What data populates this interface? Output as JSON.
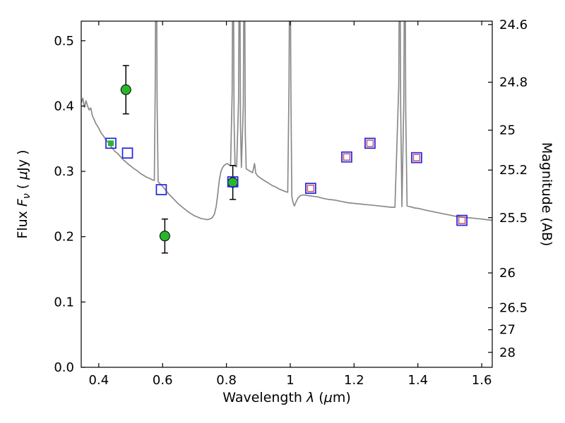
{
  "chart_data": {
    "type": "line+scatter",
    "description": "Spectral energy distribution: gray model spectrum with photometric points",
    "xlabel_parts": [
      {
        "t": "Wavelength  ",
        "style": "normal"
      },
      {
        "t": "λ",
        "style": "italic"
      },
      {
        "t": " (",
        "style": "normal"
      },
      {
        "t": "μ",
        "style": "italic"
      },
      {
        "t": "m)",
        "style": "normal"
      }
    ],
    "ylabel_left_parts": [
      {
        "t": "Flux  ",
        "style": "normal"
      },
      {
        "t": "F",
        "style": "italic"
      },
      {
        "t": "ν",
        "style": "italic",
        "sub": true
      },
      {
        "t": "  ( ",
        "style": "normal"
      },
      {
        "t": "μ",
        "style": "italic"
      },
      {
        "t": "Jy )",
        "style": "normal"
      }
    ],
    "ylabel_right": "Magnitude (AB)",
    "xlim": [
      0.345,
      1.633
    ],
    "ylim_flux": [
      0.0,
      0.53
    ],
    "x_ticks": [
      0.4,
      0.6,
      0.8,
      1,
      1.2,
      1.4,
      1.6
    ],
    "x_tick_labels": [
      "0.4",
      "0.6",
      "0.8",
      "1",
      "1.2",
      "1.4",
      "1.6"
    ],
    "y_ticks_flux": [
      0.0,
      0.1,
      0.2,
      0.3,
      0.4,
      0.5
    ],
    "y_tick_labels_flux": [
      "0.0",
      "0.1",
      "0.2",
      "0.3",
      "0.4",
      "0.5"
    ],
    "mag_ticks": [
      24.6,
      24.8,
      25,
      25.2,
      25.5,
      26,
      26.5,
      27,
      28
    ],
    "mag_tick_labels": [
      "24.6",
      "24.8",
      "25",
      "25.2",
      "25.5",
      "26",
      "26.5",
      "27",
      "28"
    ],
    "ab_zeropoint_ujy": 23.9,
    "colors": {
      "spectrum": "#8a8a8a",
      "green_marker": "#2bb52b",
      "blue_square_edge": "#2424dd",
      "red_square_edge": "#c85c74",
      "errorbar": "#000000",
      "axis": "#000000"
    },
    "spectrum_points": [
      [
        0.345,
        0.405
      ],
      [
        0.35,
        0.412
      ],
      [
        0.355,
        0.398
      ],
      [
        0.36,
        0.408
      ],
      [
        0.365,
        0.4
      ],
      [
        0.37,
        0.394
      ],
      [
        0.375,
        0.397
      ],
      [
        0.38,
        0.385
      ],
      [
        0.385,
        0.38
      ],
      [
        0.39,
        0.374
      ],
      [
        0.395,
        0.37
      ],
      [
        0.4,
        0.366
      ],
      [
        0.405,
        0.361
      ],
      [
        0.41,
        0.357
      ],
      [
        0.415,
        0.354
      ],
      [
        0.42,
        0.35
      ],
      [
        0.425,
        0.347
      ],
      [
        0.43,
        0.344
      ],
      [
        0.435,
        0.34
      ],
      [
        0.44,
        0.337
      ],
      [
        0.445,
        0.334
      ],
      [
        0.45,
        0.331
      ],
      [
        0.455,
        0.329
      ],
      [
        0.46,
        0.327
      ],
      [
        0.467,
        0.323
      ],
      [
        0.474,
        0.319
      ],
      [
        0.481,
        0.316
      ],
      [
        0.488,
        0.313
      ],
      [
        0.495,
        0.31
      ],
      [
        0.503,
        0.307
      ],
      [
        0.511,
        0.304
      ],
      [
        0.52,
        0.301
      ],
      [
        0.53,
        0.297
      ],
      [
        0.54,
        0.294
      ],
      [
        0.55,
        0.291
      ],
      [
        0.56,
        0.289
      ],
      [
        0.568,
        0.287
      ],
      [
        0.574,
        0.286
      ],
      [
        0.577,
        0.43
      ],
      [
        0.579,
        0.62
      ],
      [
        0.581,
        0.62
      ],
      [
        0.583,
        0.4
      ],
      [
        0.586,
        0.284
      ],
      [
        0.592,
        0.281
      ],
      [
        0.6,
        0.277
      ],
      [
        0.61,
        0.271
      ],
      [
        0.62,
        0.265
      ],
      [
        0.63,
        0.26
      ],
      [
        0.64,
        0.255
      ],
      [
        0.65,
        0.25
      ],
      [
        0.66,
        0.246
      ],
      [
        0.67,
        0.242
      ],
      [
        0.68,
        0.238
      ],
      [
        0.69,
        0.235
      ],
      [
        0.7,
        0.232
      ],
      [
        0.71,
        0.23
      ],
      [
        0.72,
        0.228
      ],
      [
        0.73,
        0.227
      ],
      [
        0.74,
        0.226
      ],
      [
        0.748,
        0.227
      ],
      [
        0.755,
        0.229
      ],
      [
        0.762,
        0.234
      ],
      [
        0.768,
        0.246
      ],
      [
        0.773,
        0.266
      ],
      [
        0.778,
        0.288
      ],
      [
        0.783,
        0.3
      ],
      [
        0.788,
        0.306
      ],
      [
        0.793,
        0.309
      ],
      [
        0.798,
        0.311
      ],
      [
        0.803,
        0.312
      ],
      [
        0.808,
        0.31
      ],
      [
        0.813,
        0.309
      ],
      [
        0.818,
        0.42
      ],
      [
        0.82,
        0.62
      ],
      [
        0.822,
        0.62
      ],
      [
        0.824,
        0.38
      ],
      [
        0.827,
        0.308
      ],
      [
        0.832,
        0.307
      ],
      [
        0.838,
        0.41
      ],
      [
        0.84,
        0.62
      ],
      [
        0.842,
        0.62
      ],
      [
        0.844,
        0.37
      ],
      [
        0.847,
        0.306
      ],
      [
        0.853,
        0.4
      ],
      [
        0.855,
        0.62
      ],
      [
        0.857,
        0.62
      ],
      [
        0.859,
        0.36
      ],
      [
        0.862,
        0.304
      ],
      [
        0.868,
        0.302
      ],
      [
        0.875,
        0.3
      ],
      [
        0.882,
        0.298
      ],
      [
        0.888,
        0.312
      ],
      [
        0.892,
        0.297
      ],
      [
        0.898,
        0.293
      ],
      [
        0.906,
        0.29
      ],
      [
        0.915,
        0.287
      ],
      [
        0.925,
        0.284
      ],
      [
        0.935,
        0.281
      ],
      [
        0.945,
        0.278
      ],
      [
        0.955,
        0.276
      ],
      [
        0.965,
        0.273
      ],
      [
        0.975,
        0.271
      ],
      [
        0.985,
        0.269
      ],
      [
        0.992,
        0.268
      ],
      [
        0.996,
        0.43
      ],
      [
        0.998,
        0.62
      ],
      [
        1.0,
        0.62
      ],
      [
        1.002,
        0.42
      ],
      [
        1.005,
        0.262
      ],
      [
        1.009,
        0.252
      ],
      [
        1.013,
        0.247
      ],
      [
        1.018,
        0.253
      ],
      [
        1.024,
        0.259
      ],
      [
        1.032,
        0.263
      ],
      [
        1.042,
        0.264
      ],
      [
        1.055,
        0.263
      ],
      [
        1.07,
        0.262
      ],
      [
        1.085,
        0.261
      ],
      [
        1.1,
        0.259
      ],
      [
        1.12,
        0.257
      ],
      [
        1.14,
        0.256
      ],
      [
        1.16,
        0.254
      ],
      [
        1.18,
        0.252
      ],
      [
        1.2,
        0.251
      ],
      [
        1.22,
        0.25
      ],
      [
        1.24,
        0.249
      ],
      [
        1.26,
        0.248
      ],
      [
        1.28,
        0.247
      ],
      [
        1.3,
        0.246
      ],
      [
        1.315,
        0.245
      ],
      [
        1.328,
        0.245
      ],
      [
        1.34,
        0.43
      ],
      [
        1.342,
        0.62
      ],
      [
        1.344,
        0.62
      ],
      [
        1.346,
        0.4
      ],
      [
        1.35,
        0.246
      ],
      [
        1.356,
        0.41
      ],
      [
        1.358,
        0.62
      ],
      [
        1.36,
        0.62
      ],
      [
        1.362,
        0.39
      ],
      [
        1.366,
        0.247
      ],
      [
        1.375,
        0.246
      ],
      [
        1.39,
        0.244
      ],
      [
        1.405,
        0.243
      ],
      [
        1.42,
        0.241
      ],
      [
        1.44,
        0.239
      ],
      [
        1.46,
        0.237
      ],
      [
        1.48,
        0.235
      ],
      [
        1.5,
        0.233
      ],
      [
        1.52,
        0.231
      ],
      [
        1.54,
        0.23
      ],
      [
        1.56,
        0.229
      ],
      [
        1.58,
        0.228
      ],
      [
        1.6,
        0.227
      ],
      [
        1.615,
        0.226
      ],
      [
        1.633,
        0.225
      ]
    ],
    "green_circles": [
      {
        "x": 0.485,
        "flux": 0.425,
        "err": 0.037
      },
      {
        "x": 0.607,
        "flux": 0.201,
        "err": 0.026
      },
      {
        "x": 0.82,
        "flux": 0.283,
        "err": 0.026
      }
    ],
    "blue_squares": [
      {
        "x": 0.438,
        "flux": 0.343,
        "inner_fill": "#2bb52b"
      },
      {
        "x": 0.49,
        "flux": 0.328
      },
      {
        "x": 0.596,
        "flux": 0.272
      },
      {
        "x": 0.82,
        "flux": 0.284
      }
    ],
    "red_inner_squares": [
      {
        "x": 1.064,
        "flux": 0.274
      },
      {
        "x": 1.177,
        "flux": 0.322
      },
      {
        "x": 1.25,
        "flux": 0.343
      },
      {
        "x": 1.396,
        "flux": 0.321
      },
      {
        "x": 1.538,
        "flux": 0.225
      }
    ]
  }
}
